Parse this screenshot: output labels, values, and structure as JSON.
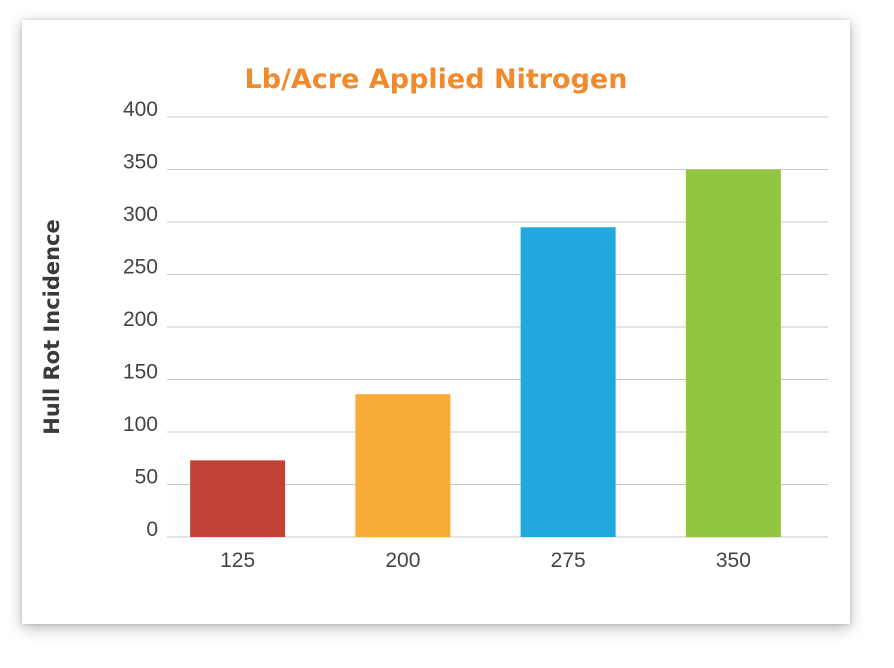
{
  "chart_data": {
    "type": "bar",
    "title": "Lb/Acre Applied Nitrogen",
    "xlabel": "",
    "ylabel": "Hull Rot Incidence",
    "categories": [
      "125",
      "200",
      "275",
      "350"
    ],
    "values": [
      73,
      136,
      295,
      350
    ],
    "colors": [
      "#c2423a",
      "#f9ab38",
      "#21a8df",
      "#93c63f"
    ],
    "ylim": [
      0,
      400
    ],
    "yticks": [
      "0",
      "50",
      "100",
      "150",
      "200",
      "250",
      "300",
      "350",
      "400"
    ],
    "grid": true,
    "legend": "none"
  }
}
